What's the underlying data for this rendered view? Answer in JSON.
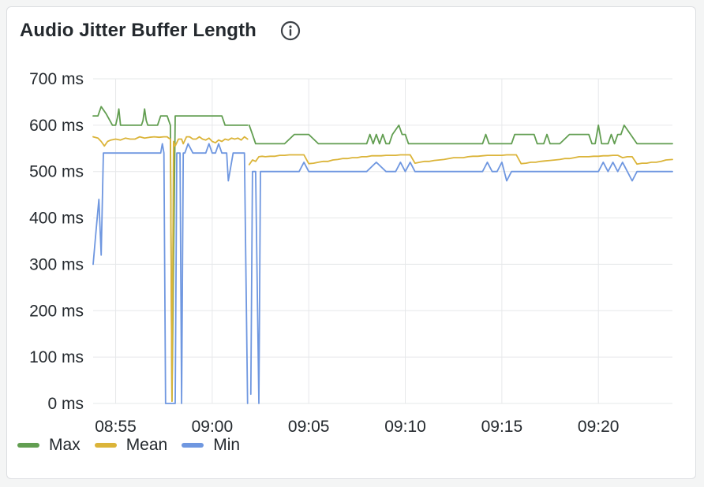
{
  "panel": {
    "title": "Audio Jitter Buffer Length",
    "info_icon": "info-icon"
  },
  "chart_data": {
    "type": "line",
    "title": "Audio Jitter Buffer Length",
    "xlabel": "",
    "ylabel": "",
    "x_ticks": [
      "08:55",
      "09:00",
      "09:05",
      "09:10",
      "09:15",
      "09:20"
    ],
    "x_range": [
      "08:53:50",
      "09:23:50"
    ],
    "y_ticks": [
      "0 ms",
      "100 ms",
      "200 ms",
      "300 ms",
      "400 ms",
      "500 ms",
      "600 ms",
      "700 ms"
    ],
    "ylim": [
      0,
      700
    ],
    "unit": "ms",
    "grid": true,
    "legend_position": "bottom-left",
    "series": [
      {
        "name": "Max",
        "color": "#629e51",
        "segments": [
          {
            "x": [
              "08:53:50",
              "08:54:05",
              "08:54:15",
              "08:54:30",
              "08:54:50",
              "08:54:55",
              "08:55:00",
              "08:55:05",
              "08:55:10",
              "08:55:15",
              "08:55:45",
              "08:56:20",
              "08:56:25",
              "08:56:30",
              "08:56:35",
              "08:56:40",
              "08:57:00",
              "08:57:10",
              "08:57:20",
              "08:57:30",
              "08:57:40",
              "08:57:45",
              "08:57:50",
              "08:57:55",
              "08:58:05",
              "08:58:20",
              "08:58:35",
              "08:58:50",
              "08:59:05",
              "08:59:20",
              "08:59:35",
              "08:59:50",
              "09:00:05",
              "09:00:20",
              "09:00:30",
              "09:00:40",
              "09:00:55",
              "09:01:10",
              "09:01:25",
              "09:01:40",
              "09:01:50"
            ],
            "y": [
              620,
              620,
              640,
              625,
              600,
              600,
              600,
              615,
              635,
              600,
              600,
              600,
              610,
              635,
              610,
              600,
              600,
              600,
              620,
              620,
              620,
              610,
              600,
              5,
              620,
              620,
              620,
              620,
              620,
              620,
              620,
              620,
              620,
              620,
              620,
              600,
              600,
              600,
              600,
              600,
              600
            ]
          },
          {
            "x": [
              "09:01:55",
              "09:02:05",
              "09:02:15",
              "09:02:30",
              "09:03:00",
              "09:03:30",
              "09:03:45",
              "09:04:15",
              "09:04:30",
              "09:04:40",
              "09:05:00",
              "09:05:30",
              "09:06:00",
              "09:06:30",
              "09:07:00",
              "09:07:30",
              "09:08:00",
              "09:08:10",
              "09:08:20",
              "09:08:30",
              "09:08:40",
              "09:08:50",
              "09:09:00",
              "09:09:10",
              "09:09:20",
              "09:09:40",
              "09:09:50",
              "09:10:00",
              "09:10:10",
              "09:10:20",
              "09:10:30",
              "09:11:00",
              "09:11:30",
              "09:12:00",
              "09:12:30",
              "09:13:00",
              "09:13:30",
              "09:14:00",
              "09:14:10",
              "09:14:20",
              "09:14:30",
              "09:14:40",
              "09:15:00",
              "09:15:30",
              "09:15:40",
              "09:15:50",
              "09:16:00",
              "09:16:20",
              "09:16:30",
              "09:16:40",
              "09:16:50",
              "09:17:10",
              "09:17:20",
              "09:17:30",
              "09:17:40",
              "09:18:00",
              "09:18:30",
              "09:19:00",
              "09:19:10",
              "09:19:20",
              "09:19:30",
              "09:19:40",
              "09:19:50",
              "09:20:00",
              "09:20:10",
              "09:20:20",
              "09:20:30",
              "09:20:40",
              "09:20:50",
              "09:21:00",
              "09:21:10",
              "09:21:20",
              "09:21:40",
              "09:22:00",
              "09:22:30",
              "09:23:00",
              "09:23:50"
            ],
            "y": [
              600,
              580,
              560,
              560,
              560,
              560,
              560,
              580,
              580,
              580,
              580,
              560,
              560,
              560,
              560,
              560,
              560,
              580,
              560,
              580,
              560,
              580,
              560,
              560,
              580,
              600,
              580,
              580,
              560,
              560,
              560,
              560,
              560,
              560,
              560,
              560,
              560,
              560,
              580,
              560,
              560,
              560,
              560,
              560,
              580,
              580,
              580,
              580,
              580,
              580,
              560,
              560,
              580,
              560,
              560,
              560,
              580,
              580,
              580,
              580,
              580,
              560,
              560,
              600,
              560,
              560,
              560,
              580,
              560,
              580,
              580,
              600,
              580,
              560,
              560,
              560,
              560
            ]
          }
        ]
      },
      {
        "name": "Mean",
        "color": "#dbb439",
        "segments": [
          {
            "x": [
              "08:53:50",
              "08:54:05",
              "08:54:15",
              "08:54:25",
              "08:54:35",
              "08:54:45",
              "08:55:00",
              "08:55:15",
              "08:55:30",
              "08:55:45",
              "08:56:00",
              "08:56:15",
              "08:56:30",
              "08:56:45",
              "08:57:00",
              "08:57:15",
              "08:57:30",
              "08:57:40",
              "08:57:45",
              "08:57:50",
              "08:57:55",
              "08:58:00",
              "08:58:05",
              "08:58:15",
              "08:58:25",
              "08:58:30",
              "08:58:40",
              "08:58:50",
              "08:59:00",
              "08:59:10",
              "08:59:20",
              "08:59:30",
              "08:59:40",
              "08:59:50",
              "09:00:00",
              "09:00:10",
              "09:00:20",
              "09:00:30",
              "09:00:40",
              "09:00:50",
              "09:01:00",
              "09:01:10",
              "09:01:20",
              "09:01:30",
              "09:01:40",
              "09:01:50"
            ],
            "y": [
              575,
              572,
              565,
              555,
              565,
              568,
              570,
              568,
              572,
              570,
              570,
              575,
              572,
              574,
              575,
              574,
              575,
              575,
              572,
              570,
              5,
              565,
              555,
              570,
              570,
              560,
              575,
              575,
              570,
              570,
              575,
              570,
              568,
              572,
              565,
              562,
              568,
              565,
              570,
              568,
              572,
              570,
              572,
              568,
              575,
              570
            ]
          },
          {
            "x": [
              "09:01:55",
              "09:02:05",
              "09:02:15",
              "09:02:25",
              "09:02:35",
              "09:02:45",
              "09:03:00",
              "09:03:15",
              "09:03:30",
              "09:03:45",
              "09:04:00",
              "09:04:15",
              "09:04:30",
              "09:04:45",
              "09:05:00",
              "09:05:15",
              "09:05:30",
              "09:05:45",
              "09:06:00",
              "09:06:15",
              "09:06:30",
              "09:06:45",
              "09:07:00",
              "09:07:15",
              "09:07:30",
              "09:07:45",
              "09:08:00",
              "09:08:15",
              "09:08:30",
              "09:08:45",
              "09:09:00",
              "09:09:15",
              "09:09:30",
              "09:09:45",
              "09:10:00",
              "09:10:15",
              "09:10:30",
              "09:10:45",
              "09:11:00",
              "09:11:15",
              "09:11:30",
              "09:11:45",
              "09:12:00",
              "09:12:15",
              "09:12:30",
              "09:12:45",
              "09:13:00",
              "09:13:15",
              "09:13:30",
              "09:13:45",
              "09:14:00",
              "09:14:15",
              "09:14:30",
              "09:14:45",
              "09:15:00",
              "09:15:15",
              "09:15:30",
              "09:15:45",
              "09:16:00",
              "09:16:15",
              "09:16:30",
              "09:16:45",
              "09:17:00",
              "09:17:15",
              "09:17:30",
              "09:17:45",
              "09:18:00",
              "09:18:15",
              "09:18:30",
              "09:18:45",
              "09:19:00",
              "09:19:15",
              "09:19:30",
              "09:19:45",
              "09:20:00",
              "09:20:15",
              "09:20:30",
              "09:20:45",
              "09:21:00",
              "09:21:15",
              "09:21:30",
              "09:21:45",
              "09:22:00",
              "09:22:15",
              "09:22:30",
              "09:22:45",
              "09:23:00",
              "09:23:15",
              "09:23:30",
              "09:23:50"
            ],
            "y": [
              515,
              525,
              522,
              532,
              533,
              532,
              533,
              533,
              535,
              535,
              536,
              536,
              536,
              536,
              517,
              518,
              520,
              522,
              522,
              525,
              526,
              528,
              528,
              530,
              530,
              532,
              532,
              534,
              534,
              534,
              535,
              535,
              535,
              536,
              536,
              536,
              518,
              520,
              522,
              522,
              524,
              525,
              526,
              528,
              530,
              530,
              530,
              532,
              533,
              533,
              534,
              535,
              535,
              535,
              535,
              536,
              536,
              536,
              517,
              518,
              520,
              520,
              522,
              523,
              524,
              525,
              526,
              528,
              528,
              530,
              532,
              532,
              532,
              533,
              533,
              534,
              534,
              535,
              535,
              530,
              532,
              532,
              516,
              518,
              518,
              520,
              520,
              522,
              525,
              526
            ]
          }
        ]
      },
      {
        "name": "Min",
        "color": "#6f97e0",
        "segments": [
          {
            "x": [
              "08:53:50",
              "08:54:00",
              "08:54:08",
              "08:54:15",
              "08:54:22",
              "08:54:35",
              "08:54:50",
              "08:55:00",
              "08:55:30",
              "08:56:00",
              "08:56:30",
              "08:57:00",
              "08:57:20",
              "08:57:25",
              "08:57:30",
              "08:57:35",
              "08:57:40",
              "08:57:55",
              "08:58:05",
              "08:58:10",
              "08:58:20",
              "08:58:25",
              "08:58:30",
              "08:58:35",
              "08:58:45",
              "08:59:00",
              "08:59:15",
              "08:59:30",
              "08:59:40",
              "08:59:50",
              "09:00:00",
              "09:00:10",
              "09:00:20",
              "09:00:30",
              "09:00:40",
              "09:00:45",
              "09:00:50",
              "09:01:05",
              "09:01:10",
              "09:01:20",
              "09:01:30",
              "09:01:40",
              "09:01:50"
            ],
            "y": [
              300,
              380,
              440,
              320,
              540,
              540,
              540,
              540,
              540,
              540,
              540,
              540,
              540,
              560,
              540,
              0,
              0,
              0,
              0,
              540,
              540,
              0,
              540,
              540,
              560,
              540,
              540,
              540,
              540,
              560,
              540,
              540,
              560,
              540,
              540,
              540,
              480,
              540,
              540,
              540,
              540,
              540,
              0
            ]
          },
          {
            "x": [
              "09:02:00",
              "09:02:05",
              "09:02:15",
              "09:02:25",
              "09:02:30",
              "09:03:00",
              "09:03:30",
              "09:04:00",
              "09:04:30",
              "09:04:45",
              "09:05:00",
              "09:05:30",
              "09:06:00",
              "09:06:30",
              "09:07:00",
              "09:07:30",
              "09:08:00",
              "09:08:30",
              "09:09:00",
              "09:09:30",
              "09:09:45",
              "09:10:00",
              "09:10:15",
              "09:10:30",
              "09:11:00",
              "09:11:30",
              "09:12:00",
              "09:12:30",
              "09:13:00",
              "09:13:30",
              "09:14:00",
              "09:14:15",
              "09:14:30",
              "09:14:45",
              "09:15:00",
              "09:15:15",
              "09:15:30",
              "09:16:00",
              "09:16:30",
              "09:17:00",
              "09:17:30",
              "09:18:00",
              "09:18:30",
              "09:19:00",
              "09:19:30",
              "09:20:00",
              "09:20:15",
              "09:20:30",
              "09:20:45",
              "09:21:00",
              "09:21:15",
              "09:21:30",
              "09:21:45",
              "09:22:00",
              "09:22:30",
              "09:23:00",
              "09:23:50"
            ],
            "y": [
              20,
              500,
              500,
              0,
              500,
              500,
              500,
              500,
              500,
              520,
              500,
              500,
              500,
              500,
              500,
              500,
              500,
              520,
              500,
              500,
              520,
              500,
              520,
              500,
              500,
              500,
              500,
              500,
              500,
              500,
              500,
              520,
              500,
              500,
              520,
              480,
              500,
              500,
              500,
              500,
              500,
              500,
              500,
              500,
              500,
              500,
              520,
              500,
              520,
              500,
              520,
              500,
              480,
              500,
              500,
              500,
              500
            ]
          }
        ]
      }
    ]
  },
  "legend": {
    "items": [
      {
        "label": "Max",
        "color": "#629e51"
      },
      {
        "label": "Mean",
        "color": "#dbb439"
      },
      {
        "label": "Min",
        "color": "#6f97e0"
      }
    ]
  }
}
